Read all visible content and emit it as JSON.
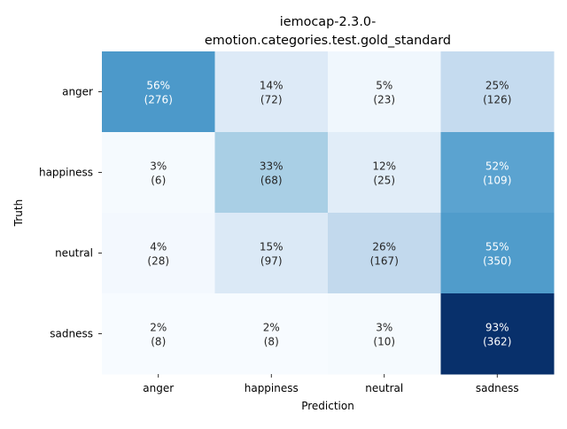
{
  "chart_data": {
    "type": "heatmap",
    "title_lines": [
      "iemocap-2.3.0-",
      "emotion.categories.test.gold_standard"
    ],
    "xlabel": "Prediction",
    "ylabel": "Truth",
    "x_categories": [
      "anger",
      "happiness",
      "neutral",
      "sadness"
    ],
    "y_categories": [
      "anger",
      "happiness",
      "neutral",
      "sadness"
    ],
    "percent_labels": [
      [
        "56%",
        "14%",
        "5%",
        "25%"
      ],
      [
        "3%",
        "33%",
        "12%",
        "52%"
      ],
      [
        "4%",
        "15%",
        "26%",
        "55%"
      ],
      [
        "2%",
        "2%",
        "3%",
        "93%"
      ]
    ],
    "count_labels": [
      [
        "(276)",
        "(72)",
        "(23)",
        "(126)"
      ],
      [
        "(6)",
        "(68)",
        "(25)",
        "(109)"
      ],
      [
        "(28)",
        "(97)",
        "(167)",
        "(350)"
      ],
      [
        "(8)",
        "(8)",
        "(10)",
        "(362)"
      ]
    ],
    "values": [
      [
        56,
        14,
        5,
        25
      ],
      [
        3,
        33,
        12,
        52
      ],
      [
        4,
        15,
        26,
        55
      ],
      [
        2,
        2,
        3,
        93
      ]
    ],
    "value_range": [
      0,
      100
    ],
    "colormap": "Blues",
    "colorbar": false,
    "grid": false
  }
}
